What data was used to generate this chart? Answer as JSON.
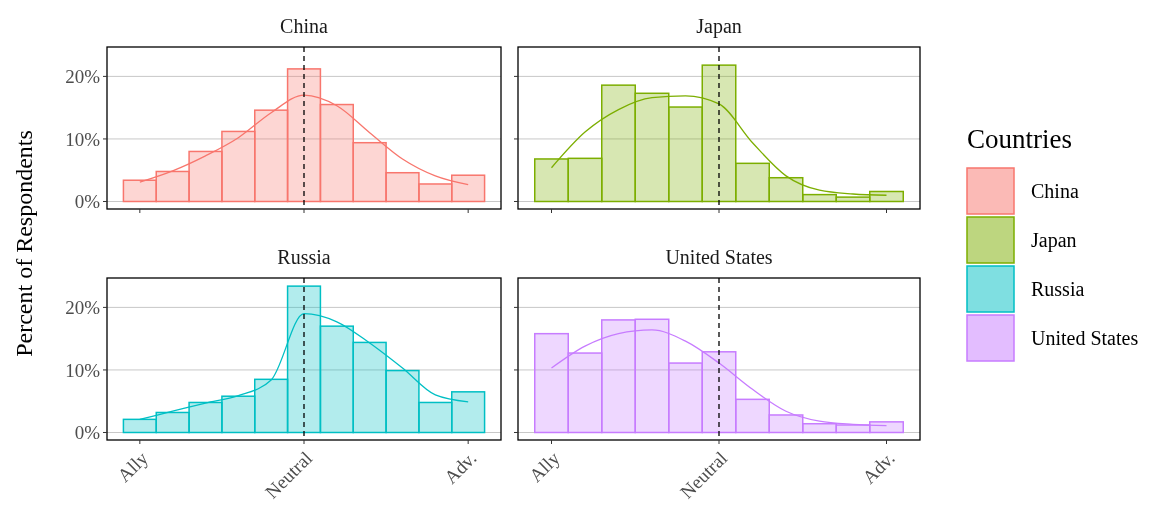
{
  "chart_data": [
    {
      "type": "bar",
      "title": "China",
      "ylabel": "Percent of Respondents",
      "legend_title": "Countries",
      "legend": "right",
      "grid": "y",
      "tick_labels": "y",
      "categories": [
        "Ally",
        null,
        null,
        null,
        null,
        "Neutral",
        null,
        null,
        null,
        null,
        "Adv."
      ],
      "ylim": [
        -1.2,
        24.7
      ],
      "yticks": [
        {
          "value": 0,
          "label": "0%"
        },
        {
          "value": 10,
          "label": "10%"
        },
        {
          "value": 20,
          "label": "20%"
        }
      ],
      "ref_lines": [
        {
          "axis": "x",
          "value": "Neutral",
          "color": "#000000",
          "line_style": "dashed"
        }
      ],
      "series": [
        {
          "name": "China",
          "color": "#f8766d",
          "values": [
            3.4,
            4.8,
            8.0,
            11.2,
            14.6,
            21.2,
            15.5,
            9.4,
            4.6,
            2.8,
            4.2
          ]
        },
        {
          "type": "line",
          "color": "#f8766d",
          "values": [
            3.1,
            4.9,
            7.3,
            10.2,
            14.2,
            17.0,
            15.3,
            11.0,
            6.8,
            4.1,
            2.7
          ]
        }
      ]
    },
    {
      "type": "bar",
      "title": "Japan",
      "grid": "y",
      "tick_labels": false,
      "categories": [
        "Ally",
        null,
        null,
        null,
        null,
        "Neutral",
        null,
        null,
        null,
        null,
        "Adv."
      ],
      "ylim": [
        -1.2,
        24.7
      ],
      "yticks": [
        {
          "value": 0,
          "label": null
        },
        {
          "value": 10,
          "label": null
        },
        {
          "value": 20,
          "label": null
        }
      ],
      "ref_lines": [
        {
          "axis": "x",
          "value": "Neutral",
          "color": "#000000",
          "line_style": "dashed"
        }
      ],
      "series": [
        {
          "name": "Japan",
          "color": "#7cae00",
          "values": [
            6.8,
            6.9,
            18.6,
            17.3,
            15.1,
            21.8,
            6.1,
            3.8,
            1.1,
            0.7,
            1.6
          ]
        },
        {
          "type": "line",
          "color": "#7cae00",
          "values": [
            5.4,
            11.1,
            14.7,
            16.6,
            16.9,
            15.6,
            9.4,
            4.1,
            1.8,
            1.2,
            1.0
          ]
        }
      ]
    },
    {
      "type": "bar",
      "title": "Russia",
      "grid": "y",
      "categories": [
        "Ally",
        null,
        null,
        null,
        null,
        "Neutral",
        null,
        null,
        null,
        null,
        "Adv."
      ],
      "ylim": [
        -1.2,
        24.7
      ],
      "yticks": [
        {
          "value": 0,
          "label": "0%"
        },
        {
          "value": 10,
          "label": "10%"
        },
        {
          "value": 20,
          "label": "20%"
        }
      ],
      "ref_lines": [
        {
          "axis": "x",
          "value": "Neutral",
          "color": "#000000",
          "line_style": "dashed"
        }
      ],
      "series": [
        {
          "name": "Russia",
          "color": "#00bfc4",
          "values": [
            2.1,
            3.2,
            4.8,
            5.8,
            8.5,
            23.4,
            17.0,
            14.4,
            9.9,
            4.8,
            6.5
          ]
        },
        {
          "type": "line",
          "color": "#00bfc4",
          "values": [
            2.1,
            3.4,
            4.7,
            5.9,
            8.4,
            19.0,
            17.7,
            14.3,
            10.3,
            6.0,
            4.9
          ]
        }
      ]
    },
    {
      "type": "bar",
      "title": "United States",
      "grid": "y",
      "tick_labels": "x",
      "categories": [
        "Ally",
        null,
        null,
        null,
        null,
        "Neutral",
        null,
        null,
        null,
        null,
        "Adv."
      ],
      "ylim": [
        -1.2,
        24.7
      ],
      "yticks": [
        {
          "value": 0,
          "label": null
        },
        {
          "value": 10,
          "label": null
        },
        {
          "value": 20,
          "label": null
        }
      ],
      "ref_lines": [
        {
          "axis": "x",
          "value": "Neutral",
          "color": "#000000",
          "line_style": "dashed"
        }
      ],
      "series": [
        {
          "name": "United States",
          "color": "#c77cff",
          "values": [
            15.8,
            12.7,
            18.0,
            18.1,
            11.1,
            12.9,
            5.3,
            2.8,
            1.4,
            1.2,
            1.7
          ]
        },
        {
          "type": "line",
          "color": "#c77cff",
          "values": [
            10.3,
            13.8,
            15.8,
            16.4,
            14.6,
            11.1,
            6.9,
            3.4,
            1.8,
            1.3,
            1.1
          ]
        }
      ]
    }
  ]
}
